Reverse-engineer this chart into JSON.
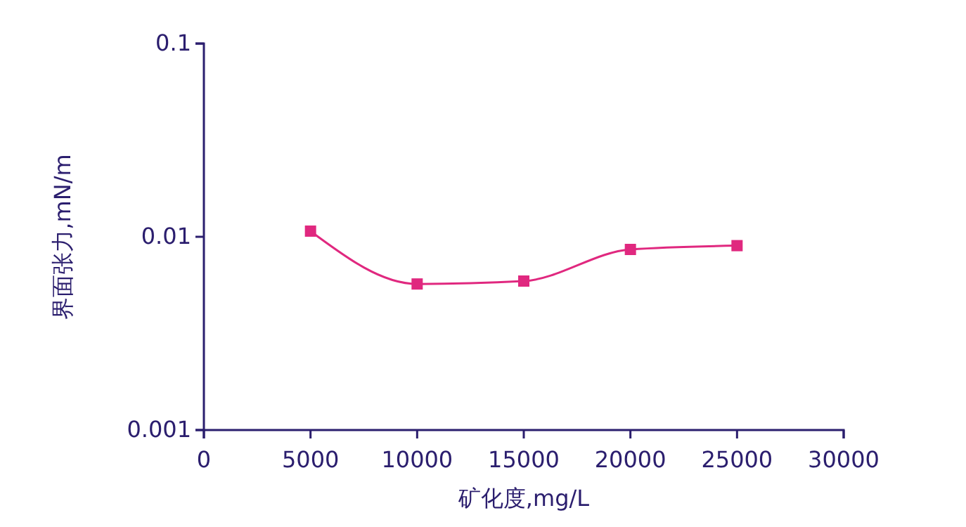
{
  "chart_data": {
    "type": "line",
    "xlabel": "矿化度,mg/L",
    "ylabel": "界面张力,mN/m",
    "x": [
      5000,
      10000,
      15000,
      20000,
      25000
    ],
    "series": [
      {
        "color": "#e0287f",
        "values": [
          0.0107,
          0.0057,
          0.0059,
          0.0086,
          0.009
        ]
      }
    ],
    "xlim": [
      0,
      30000
    ],
    "xticks": [
      0,
      5000,
      10000,
      15000,
      20000,
      25000,
      30000
    ],
    "ylim": [
      0.001,
      0.1
    ],
    "yticks": [
      0.001,
      0.01,
      0.1
    ],
    "log": true,
    "grid": false,
    "marker": "square",
    "line_style": "solid"
  }
}
